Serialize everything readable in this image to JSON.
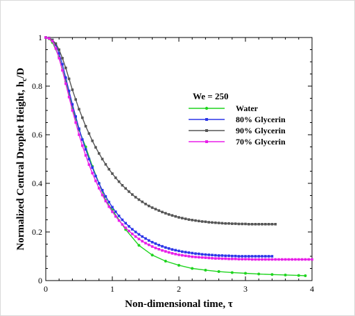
{
  "chart_data": {
    "type": "line",
    "xlabel": "Non-dimensional time, τ",
    "ylabel": "Normalized Central Droplet Height, h",
    "ylabel_sub": "c",
    "ylabel_end": "/D",
    "xlim": [
      0,
      4
    ],
    "ylim": [
      0,
      1
    ],
    "x_ticks": [
      "0",
      "1",
      "2",
      "3",
      "4"
    ],
    "y_ticks": [
      "0",
      "0.2",
      "0.4",
      "0.6",
      "0.8",
      "1"
    ],
    "grid": false,
    "legend_title": "We = 250",
    "legend_position": "center-right",
    "series": [
      {
        "name": "Water",
        "color": "#1fd41f",
        "x": [
          0.0,
          0.05,
          0.1,
          0.2,
          0.3,
          0.4,
          0.5,
          0.6,
          0.7,
          0.8,
          0.9,
          1.0,
          1.2,
          1.4,
          1.6,
          1.8,
          2.0,
          2.2,
          2.4,
          2.6,
          2.8,
          3.0,
          3.2,
          3.4,
          3.6,
          3.8,
          3.9
        ],
        "y": [
          1.0,
          0.995,
          0.98,
          0.92,
          0.82,
          0.71,
          0.62,
          0.55,
          0.47,
          0.4,
          0.33,
          0.29,
          0.21,
          0.145,
          0.105,
          0.08,
          0.063,
          0.05,
          0.043,
          0.037,
          0.033,
          0.03,
          0.027,
          0.025,
          0.023,
          0.021,
          0.02
        ]
      },
      {
        "name": "80% Glycerin",
        "color": "#2b35e8",
        "x": [
          0.0,
          0.05,
          0.1,
          0.15,
          0.2,
          0.25,
          0.3,
          0.35,
          0.4,
          0.45,
          0.5,
          0.55,
          0.6,
          0.65,
          0.7,
          0.75,
          0.8,
          0.85,
          0.9,
          0.95,
          1.0,
          1.05,
          1.1,
          1.15,
          1.2,
          1.25,
          1.3,
          1.35,
          1.4,
          1.45,
          1.5,
          1.55,
          1.6,
          1.65,
          1.7,
          1.75,
          1.8,
          1.85,
          1.9,
          1.95,
          2.0,
          2.05,
          2.1,
          2.15,
          2.2,
          2.25,
          2.3,
          2.35,
          2.4,
          2.45,
          2.5,
          2.55,
          2.6,
          2.65,
          2.7,
          2.75,
          2.8,
          2.85,
          2.9,
          2.95,
          3.0,
          3.05,
          3.1,
          3.15,
          3.2,
          3.25,
          3.3,
          3.35,
          3.4
        ],
        "y": [
          1.0,
          0.998,
          0.99,
          0.97,
          0.935,
          0.89,
          0.835,
          0.78,
          0.725,
          0.675,
          0.625,
          0.58,
          0.54,
          0.5,
          0.465,
          0.43,
          0.4,
          0.372,
          0.346,
          0.323,
          0.302,
          0.283,
          0.266,
          0.25,
          0.236,
          0.223,
          0.211,
          0.2,
          0.19,
          0.181,
          0.173,
          0.165,
          0.158,
          0.152,
          0.146,
          0.141,
          0.136,
          0.132,
          0.128,
          0.125,
          0.122,
          0.119,
          0.117,
          0.115,
          0.113,
          0.111,
          0.11,
          0.108,
          0.107,
          0.106,
          0.105,
          0.104,
          0.103,
          0.103,
          0.102,
          0.102,
          0.101,
          0.101,
          0.1,
          0.1,
          0.1,
          0.1,
          0.1,
          0.1,
          0.1,
          0.1,
          0.1,
          0.1,
          0.1
        ]
      },
      {
        "name": "90% Glycerin",
        "color": "#555555",
        "x": [
          0.0,
          0.05,
          0.1,
          0.15,
          0.2,
          0.25,
          0.3,
          0.35,
          0.4,
          0.45,
          0.5,
          0.55,
          0.6,
          0.65,
          0.7,
          0.75,
          0.8,
          0.85,
          0.9,
          0.95,
          1.0,
          1.05,
          1.1,
          1.15,
          1.2,
          1.25,
          1.3,
          1.35,
          1.4,
          1.45,
          1.5,
          1.55,
          1.6,
          1.65,
          1.7,
          1.75,
          1.8,
          1.85,
          1.9,
          1.95,
          2.0,
          2.05,
          2.1,
          2.15,
          2.2,
          2.25,
          2.3,
          2.35,
          2.4,
          2.45,
          2.5,
          2.55,
          2.6,
          2.65,
          2.7,
          2.75,
          2.8,
          2.85,
          2.9,
          2.95,
          3.0,
          3.05,
          3.1,
          3.15,
          3.2,
          3.25,
          3.3,
          3.35,
          3.4,
          3.45
        ],
        "y": [
          1.0,
          0.998,
          0.99,
          0.975,
          0.95,
          0.915,
          0.875,
          0.83,
          0.785,
          0.745,
          0.705,
          0.67,
          0.635,
          0.605,
          0.575,
          0.548,
          0.523,
          0.5,
          0.478,
          0.458,
          0.44,
          0.423,
          0.407,
          0.392,
          0.379,
          0.366,
          0.354,
          0.343,
          0.333,
          0.324,
          0.315,
          0.307,
          0.3,
          0.294,
          0.288,
          0.282,
          0.277,
          0.272,
          0.268,
          0.264,
          0.26,
          0.257,
          0.254,
          0.251,
          0.249,
          0.247,
          0.245,
          0.243,
          0.242,
          0.24,
          0.239,
          0.238,
          0.237,
          0.236,
          0.235,
          0.235,
          0.234,
          0.234,
          0.233,
          0.233,
          0.233,
          0.232,
          0.232,
          0.232,
          0.232,
          0.232,
          0.232,
          0.232,
          0.232,
          0.232
        ]
      },
      {
        "name": "70% Glycerin",
        "color": "#e81ee8",
        "x": [
          0.0,
          0.05,
          0.1,
          0.15,
          0.2,
          0.25,
          0.3,
          0.35,
          0.4,
          0.45,
          0.5,
          0.55,
          0.6,
          0.65,
          0.7,
          0.75,
          0.8,
          0.85,
          0.9,
          0.95,
          1.0,
          1.05,
          1.1,
          1.15,
          1.2,
          1.25,
          1.3,
          1.35,
          1.4,
          1.45,
          1.5,
          1.55,
          1.6,
          1.65,
          1.7,
          1.75,
          1.8,
          1.85,
          1.9,
          1.95,
          2.0,
          2.05,
          2.1,
          2.15,
          2.2,
          2.25,
          2.3,
          2.35,
          2.4,
          2.45,
          2.5,
          2.55,
          2.6,
          2.65,
          2.7,
          2.75,
          2.8,
          2.85,
          2.9,
          2.95,
          3.0,
          3.05,
          3.1,
          3.15,
          3.2,
          3.25,
          3.3,
          3.35,
          3.4,
          3.45,
          3.5,
          3.55,
          3.6,
          3.65,
          3.7,
          3.75,
          3.8,
          3.85,
          3.9,
          3.95,
          4.0
        ],
        "y": [
          1.0,
          0.996,
          0.985,
          0.955,
          0.915,
          0.865,
          0.81,
          0.755,
          0.7,
          0.65,
          0.6,
          0.555,
          0.515,
          0.477,
          0.442,
          0.41,
          0.38,
          0.352,
          0.327,
          0.304,
          0.283,
          0.264,
          0.247,
          0.231,
          0.217,
          0.204,
          0.192,
          0.181,
          0.171,
          0.162,
          0.154,
          0.147,
          0.14,
          0.134,
          0.129,
          0.124,
          0.12,
          0.116,
          0.112,
          0.109,
          0.106,
          0.104,
          0.102,
          0.1,
          0.098,
          0.097,
          0.096,
          0.095,
          0.094,
          0.093,
          0.092,
          0.091,
          0.091,
          0.09,
          0.09,
          0.089,
          0.089,
          0.089,
          0.088,
          0.088,
          0.088,
          0.088,
          0.087,
          0.087,
          0.087,
          0.087,
          0.087,
          0.087,
          0.087,
          0.087,
          0.087,
          0.087,
          0.087,
          0.087,
          0.087,
          0.087,
          0.087,
          0.087,
          0.087,
          0.087,
          0.087
        ]
      }
    ]
  }
}
